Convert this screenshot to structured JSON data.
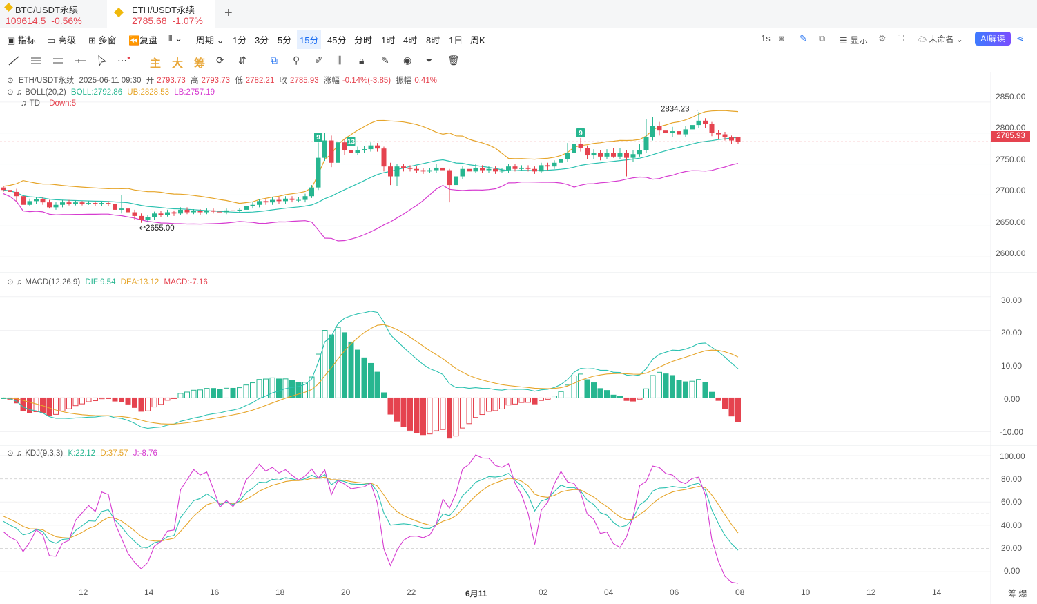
{
  "tabs": [
    {
      "pair": "BTC/USDT永续",
      "price": "109614.5",
      "change": "-0.56%"
    },
    {
      "pair": "ETH/USDT永续",
      "price": "2785.68",
      "change": "-1.07%"
    }
  ],
  "toolbar": {
    "indicators": "指标",
    "advanced": "高级",
    "multi": "多窗",
    "replay": "复盘",
    "period": "周期",
    "intervals": [
      "1分",
      "3分",
      "5分",
      "15分",
      "45分",
      "分时",
      "1时",
      "4时",
      "8时",
      "1日",
      "周K"
    ],
    "active_interval": "15分",
    "speed": "1s",
    "display": "显示",
    "unnamed": "未命名",
    "ai": "AI解读"
  },
  "drawbar": {
    "main": "主",
    "big": "大",
    "chips": "筹"
  },
  "legend": {
    "ohlc": {
      "symbol": "ETH/USDT永续",
      "datetime": "2025-06-11 09:30",
      "open_label": "开",
      "open": "2793.73",
      "high_label": "高",
      "high": "2793.73",
      "low_label": "低",
      "low": "2782.21",
      "close_label": "收",
      "close": "2785.93",
      "chg_label": "涨幅",
      "chg": "-0.14%(-3.85)",
      "amp_label": "振幅",
      "amp": "0.41%"
    },
    "boll": {
      "name": "BOLL(20,2)",
      "mid": "BOLL:2792.86",
      "ub": "UB:2828.53",
      "lb": "LB:2757.19"
    },
    "td": {
      "name": "TD",
      "val": "Down:5"
    },
    "macd": {
      "name": "MACD(12,26,9)",
      "dif": "DIF:9.54",
      "dea": "DEA:13.12",
      "macd": "MACD:-7.16"
    },
    "kdj": {
      "name": "KDJ(9,3,3)",
      "k": "K:22.12",
      "d": "D:37.57",
      "j": "J:-8.76"
    }
  },
  "annotations": {
    "high": "2834.23",
    "low": "2655.00",
    "td_marks": [
      "9",
      "13",
      "9"
    ],
    "last_price": "2785.93"
  },
  "axes": {
    "price_ticks": [
      "2850.00",
      "2800.00",
      "2750.00",
      "2700.00",
      "2650.00",
      "2600.00"
    ],
    "macd_ticks": [
      "30.00",
      "20.00",
      "10.00",
      "0.00",
      "-10.00"
    ],
    "kdj_ticks": [
      "100.00",
      "80.00",
      "60.00",
      "40.00",
      "20.00",
      "0.00"
    ],
    "x_ticks": [
      "12",
      "14",
      "16",
      "18",
      "20",
      "22",
      "6月11",
      "02",
      "04",
      "06",
      "08",
      "10",
      "12",
      "14"
    ],
    "corner": "筹 爆"
  },
  "colors": {
    "up": "#27b690",
    "down": "#e5434f",
    "boll_ub": "#e6a52a",
    "boll_mid": "#2bc1b0",
    "boll_lb": "#d63bd0",
    "accent": "#1c6ef2"
  },
  "chart_data": {
    "type": "candlestick",
    "timeframe": "15m",
    "price_range": [
      2580,
      2870
    ],
    "candles": [
      {
        "o": 2712,
        "c": 2708,
        "h": 2715,
        "l": 2705
      },
      {
        "o": 2708,
        "c": 2705,
        "h": 2711,
        "l": 2700
      },
      {
        "o": 2705,
        "c": 2698,
        "h": 2710,
        "l": 2690
      },
      {
        "o": 2698,
        "c": 2684,
        "h": 2700,
        "l": 2676
      },
      {
        "o": 2684,
        "c": 2690,
        "h": 2694,
        "l": 2682
      },
      {
        "o": 2690,
        "c": 2693,
        "h": 2697,
        "l": 2686
      },
      {
        "o": 2693,
        "c": 2688,
        "h": 2697,
        "l": 2684
      },
      {
        "o": 2688,
        "c": 2680,
        "h": 2692,
        "l": 2678
      },
      {
        "o": 2680,
        "c": 2684,
        "h": 2688,
        "l": 2676
      },
      {
        "o": 2684,
        "c": 2688,
        "h": 2692,
        "l": 2680
      },
      {
        "o": 2688,
        "c": 2686,
        "h": 2692,
        "l": 2683
      },
      {
        "o": 2686,
        "c": 2688,
        "h": 2691,
        "l": 2683
      },
      {
        "o": 2688,
        "c": 2686,
        "h": 2690,
        "l": 2683
      },
      {
        "o": 2686,
        "c": 2687,
        "h": 2690,
        "l": 2684
      },
      {
        "o": 2687,
        "c": 2685,
        "h": 2690,
        "l": 2682
      },
      {
        "o": 2685,
        "c": 2687,
        "h": 2689,
        "l": 2682
      },
      {
        "o": 2687,
        "c": 2685,
        "h": 2690,
        "l": 2682
      },
      {
        "o": 2685,
        "c": 2676,
        "h": 2688,
        "l": 2670
      },
      {
        "o": 2676,
        "c": 2678,
        "h": 2700,
        "l": 2670
      },
      {
        "o": 2678,
        "c": 2672,
        "h": 2682,
        "l": 2666
      },
      {
        "o": 2672,
        "c": 2666,
        "h": 2676,
        "l": 2660
      },
      {
        "o": 2666,
        "c": 2660,
        "h": 2670,
        "l": 2655
      },
      {
        "o": 2660,
        "c": 2664,
        "h": 2668,
        "l": 2656
      },
      {
        "o": 2664,
        "c": 2670,
        "h": 2673,
        "l": 2660
      },
      {
        "o": 2670,
        "c": 2668,
        "h": 2674,
        "l": 2664
      },
      {
        "o": 2668,
        "c": 2672,
        "h": 2676,
        "l": 2665
      },
      {
        "o": 2672,
        "c": 2670,
        "h": 2675,
        "l": 2666
      },
      {
        "o": 2670,
        "c": 2676,
        "h": 2680,
        "l": 2667
      },
      {
        "o": 2676,
        "c": 2672,
        "h": 2680,
        "l": 2669
      },
      {
        "o": 2672,
        "c": 2674,
        "h": 2677,
        "l": 2669
      },
      {
        "o": 2674,
        "c": 2672,
        "h": 2677,
        "l": 2668
      },
      {
        "o": 2672,
        "c": 2675,
        "h": 2678,
        "l": 2669
      },
      {
        "o": 2675,
        "c": 2673,
        "h": 2678,
        "l": 2670
      },
      {
        "o": 2673,
        "c": 2672,
        "h": 2676,
        "l": 2669
      },
      {
        "o": 2672,
        "c": 2675,
        "h": 2678,
        "l": 2669
      },
      {
        "o": 2675,
        "c": 2674,
        "h": 2678,
        "l": 2671
      },
      {
        "o": 2674,
        "c": 2676,
        "h": 2679,
        "l": 2671
      },
      {
        "o": 2676,
        "c": 2682,
        "h": 2685,
        "l": 2673
      },
      {
        "o": 2682,
        "c": 2684,
        "h": 2688,
        "l": 2678
      },
      {
        "o": 2684,
        "c": 2690,
        "h": 2693,
        "l": 2680
      },
      {
        "o": 2690,
        "c": 2688,
        "h": 2694,
        "l": 2684
      },
      {
        "o": 2688,
        "c": 2692,
        "h": 2696,
        "l": 2684
      },
      {
        "o": 2692,
        "c": 2690,
        "h": 2696,
        "l": 2686
      },
      {
        "o": 2690,
        "c": 2694,
        "h": 2698,
        "l": 2686
      },
      {
        "o": 2694,
        "c": 2692,
        "h": 2698,
        "l": 2688
      },
      {
        "o": 2692,
        "c": 2692,
        "h": 2696,
        "l": 2688
      },
      {
        "o": 2692,
        "c": 2698,
        "h": 2702,
        "l": 2688
      },
      {
        "o": 2698,
        "c": 2712,
        "h": 2716,
        "l": 2695
      },
      {
        "o": 2712,
        "c": 2760,
        "h": 2785,
        "l": 2708
      },
      {
        "o": 2760,
        "c": 2788,
        "h": 2800,
        "l": 2755
      },
      {
        "o": 2788,
        "c": 2752,
        "h": 2796,
        "l": 2745
      },
      {
        "o": 2752,
        "c": 2785,
        "h": 2790,
        "l": 2748
      },
      {
        "o": 2785,
        "c": 2772,
        "h": 2790,
        "l": 2764
      },
      {
        "o": 2772,
        "c": 2768,
        "h": 2778,
        "l": 2760
      },
      {
        "o": 2768,
        "c": 2772,
        "h": 2778,
        "l": 2765
      },
      {
        "o": 2772,
        "c": 2774,
        "h": 2779,
        "l": 2768
      },
      {
        "o": 2774,
        "c": 2780,
        "h": 2785,
        "l": 2770
      },
      {
        "o": 2780,
        "c": 2775,
        "h": 2784,
        "l": 2770
      },
      {
        "o": 2775,
        "c": 2746,
        "h": 2778,
        "l": 2738
      },
      {
        "o": 2746,
        "c": 2730,
        "h": 2752,
        "l": 2716
      },
      {
        "o": 2730,
        "c": 2746,
        "h": 2750,
        "l": 2714
      },
      {
        "o": 2746,
        "c": 2744,
        "h": 2750,
        "l": 2738
      },
      {
        "o": 2744,
        "c": 2742,
        "h": 2748,
        "l": 2738
      },
      {
        "o": 2742,
        "c": 2740,
        "h": 2746,
        "l": 2735
      },
      {
        "o": 2740,
        "c": 2738,
        "h": 2744,
        "l": 2734
      },
      {
        "o": 2738,
        "c": 2740,
        "h": 2744,
        "l": 2735
      },
      {
        "o": 2740,
        "c": 2744,
        "h": 2750,
        "l": 2736
      },
      {
        "o": 2744,
        "c": 2740,
        "h": 2748,
        "l": 2736
      },
      {
        "o": 2740,
        "c": 2716,
        "h": 2742,
        "l": 2688
      },
      {
        "o": 2716,
        "c": 2730,
        "h": 2736,
        "l": 2712
      },
      {
        "o": 2730,
        "c": 2742,
        "h": 2746,
        "l": 2726
      },
      {
        "o": 2742,
        "c": 2738,
        "h": 2748,
        "l": 2733
      },
      {
        "o": 2738,
        "c": 2744,
        "h": 2750,
        "l": 2735
      },
      {
        "o": 2744,
        "c": 2740,
        "h": 2748,
        "l": 2736
      },
      {
        "o": 2740,
        "c": 2742,
        "h": 2746,
        "l": 2736
      },
      {
        "o": 2742,
        "c": 2738,
        "h": 2746,
        "l": 2734
      },
      {
        "o": 2738,
        "c": 2740,
        "h": 2744,
        "l": 2735
      },
      {
        "o": 2740,
        "c": 2746,
        "h": 2750,
        "l": 2736
      },
      {
        "o": 2746,
        "c": 2742,
        "h": 2750,
        "l": 2738
      },
      {
        "o": 2742,
        "c": 2744,
        "h": 2748,
        "l": 2739
      },
      {
        "o": 2744,
        "c": 2742,
        "h": 2748,
        "l": 2738
      },
      {
        "o": 2742,
        "c": 2738,
        "h": 2746,
        "l": 2734
      },
      {
        "o": 2738,
        "c": 2748,
        "h": 2752,
        "l": 2735
      },
      {
        "o": 2748,
        "c": 2746,
        "h": 2752,
        "l": 2740
      },
      {
        "o": 2746,
        "c": 2752,
        "h": 2756,
        "l": 2742
      },
      {
        "o": 2752,
        "c": 2758,
        "h": 2762,
        "l": 2746
      },
      {
        "o": 2758,
        "c": 2768,
        "h": 2784,
        "l": 2754
      },
      {
        "o": 2768,
        "c": 2782,
        "h": 2800,
        "l": 2764
      },
      {
        "o": 2782,
        "c": 2776,
        "h": 2792,
        "l": 2770
      },
      {
        "o": 2776,
        "c": 2764,
        "h": 2780,
        "l": 2758
      },
      {
        "o": 2764,
        "c": 2768,
        "h": 2774,
        "l": 2758
      },
      {
        "o": 2768,
        "c": 2762,
        "h": 2772,
        "l": 2756
      },
      {
        "o": 2762,
        "c": 2768,
        "h": 2774,
        "l": 2758
      },
      {
        "o": 2768,
        "c": 2762,
        "h": 2776,
        "l": 2760
      },
      {
        "o": 2762,
        "c": 2768,
        "h": 2776,
        "l": 2758
      },
      {
        "o": 2768,
        "c": 2760,
        "h": 2772,
        "l": 2730
      },
      {
        "o": 2760,
        "c": 2766,
        "h": 2772,
        "l": 2754
      },
      {
        "o": 2766,
        "c": 2772,
        "h": 2782,
        "l": 2762
      },
      {
        "o": 2772,
        "c": 2794,
        "h": 2822,
        "l": 2768
      },
      {
        "o": 2794,
        "c": 2812,
        "h": 2826,
        "l": 2788
      },
      {
        "o": 2812,
        "c": 2804,
        "h": 2818,
        "l": 2796
      },
      {
        "o": 2804,
        "c": 2800,
        "h": 2812,
        "l": 2794
      },
      {
        "o": 2800,
        "c": 2803,
        "h": 2810,
        "l": 2794
      },
      {
        "o": 2803,
        "c": 2798,
        "h": 2808,
        "l": 2792
      },
      {
        "o": 2798,
        "c": 2806,
        "h": 2812,
        "l": 2794
      },
      {
        "o": 2806,
        "c": 2813,
        "h": 2818,
        "l": 2800
      },
      {
        "o": 2813,
        "c": 2820,
        "h": 2834,
        "l": 2808
      },
      {
        "o": 2820,
        "c": 2815,
        "h": 2824,
        "l": 2808
      },
      {
        "o": 2815,
        "c": 2800,
        "h": 2818,
        "l": 2795
      },
      {
        "o": 2800,
        "c": 2798,
        "h": 2805,
        "l": 2790
      },
      {
        "o": 2798,
        "c": 2793,
        "h": 2802,
        "l": 2788
      },
      {
        "o": 2793,
        "c": 2788,
        "h": 2796,
        "l": 2783
      },
      {
        "o": 2793.73,
        "c": 2785.93,
        "h": 2793.73,
        "l": 2782.21
      }
    ],
    "macd": {
      "range": [
        -13,
        32
      ]
    },
    "kdj": {
      "range": [
        -10,
        103
      ]
    }
  }
}
